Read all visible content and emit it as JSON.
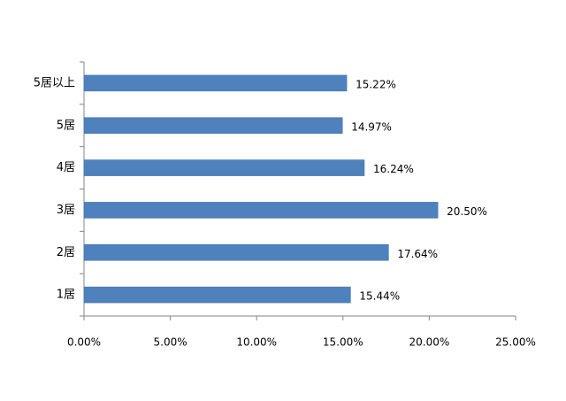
{
  "chart_data": {
    "type": "bar",
    "orientation": "horizontal",
    "categories": [
      "5居以上",
      "5居",
      "4居",
      "3居",
      "2居",
      "1居"
    ],
    "values": [
      15.22,
      14.97,
      16.24,
      20.5,
      17.64,
      15.44
    ],
    "value_labels": [
      "15.22%",
      "14.97%",
      "16.24%",
      "20.50%",
      "17.64%",
      "15.44%"
    ],
    "color": "#4f81bd",
    "xlim": [
      0,
      25
    ],
    "xticks": [
      {
        "value": 0,
        "label": "0.00%"
      },
      {
        "value": 5,
        "label": "5.00%"
      },
      {
        "value": 10,
        "label": "10.00%"
      },
      {
        "value": 15,
        "label": "15.00%"
      },
      {
        "value": 20,
        "label": "20.00%"
      },
      {
        "value": 25,
        "label": "25.00%"
      }
    ],
    "grid": false
  }
}
